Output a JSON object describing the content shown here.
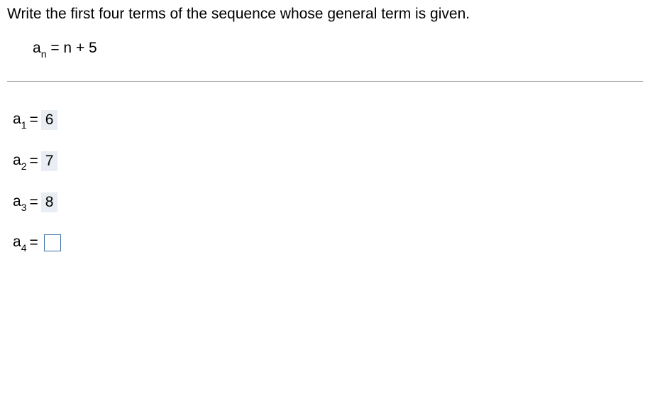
{
  "question": "Write the first four terms of the sequence whose general term is given.",
  "formula": {
    "base": "a",
    "subscript": "n",
    "rhs": "= n + 5"
  },
  "answers": [
    {
      "base": "a",
      "subscript": "1",
      "eq": "=",
      "value": "6",
      "filled": true
    },
    {
      "base": "a",
      "subscript": "2",
      "eq": "=",
      "value": "7",
      "filled": true
    },
    {
      "base": "a",
      "subscript": "3",
      "eq": "=",
      "value": "8",
      "filled": true
    },
    {
      "base": "a",
      "subscript": "4",
      "eq": "=",
      "value": "",
      "filled": false
    }
  ],
  "colors": {
    "filled_bg": "#e8eef3",
    "input_border": "#3a6ea5",
    "divider": "#999999",
    "text": "#000000",
    "background": "#ffffff"
  },
  "typography": {
    "body_fontsize": 21,
    "sub_fontsize": 14,
    "font_family": "Arial"
  }
}
